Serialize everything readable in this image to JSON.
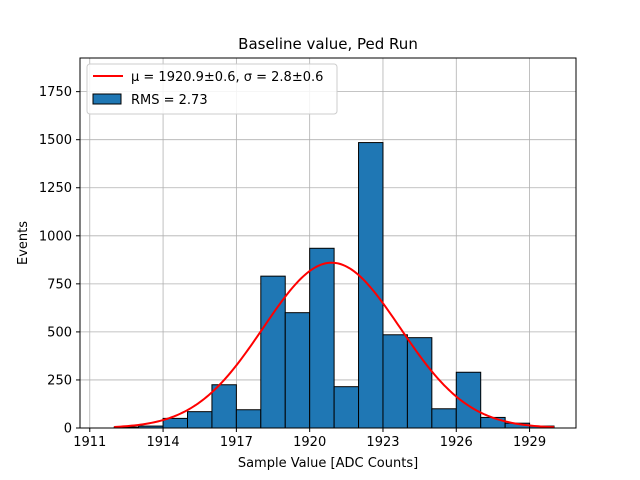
{
  "chart_data": {
    "type": "bar",
    "title": "Baseline value, Ped Run",
    "xlabel": "Sample Value [ADC Counts]",
    "ylabel": "Events",
    "xlim": [
      1910.6,
      1930.9
    ],
    "ylim": [
      0,
      1925
    ],
    "xticks": [
      1911,
      1914,
      1917,
      1920,
      1923,
      1926,
      1929
    ],
    "yticks": [
      0,
      250,
      500,
      750,
      1000,
      1250,
      1500,
      1750
    ],
    "grid": true,
    "legend_position": "upper-left",
    "bin_width": 1,
    "histogram": {
      "name": "RMS = 2.73",
      "color": "#1f77b4",
      "edgecolor": "#000000",
      "bin_starts": [
        1912,
        1913,
        1914,
        1915,
        1916,
        1917,
        1918,
        1919,
        1920,
        1921,
        1922,
        1923,
        1924,
        1925,
        1926,
        1927,
        1928,
        1929
      ],
      "counts": [
        5,
        10,
        50,
        85,
        225,
        95,
        790,
        600,
        935,
        215,
        1485,
        485,
        470,
        100,
        290,
        55,
        25,
        10
      ]
    },
    "fit": {
      "name": "μ = 1920.9±0.6, σ = 2.8±0.6",
      "color": "#ff0000",
      "mu": 1920.9,
      "sigma": 2.8,
      "amplitude": 860,
      "x_range": [
        1912,
        1930
      ]
    }
  }
}
